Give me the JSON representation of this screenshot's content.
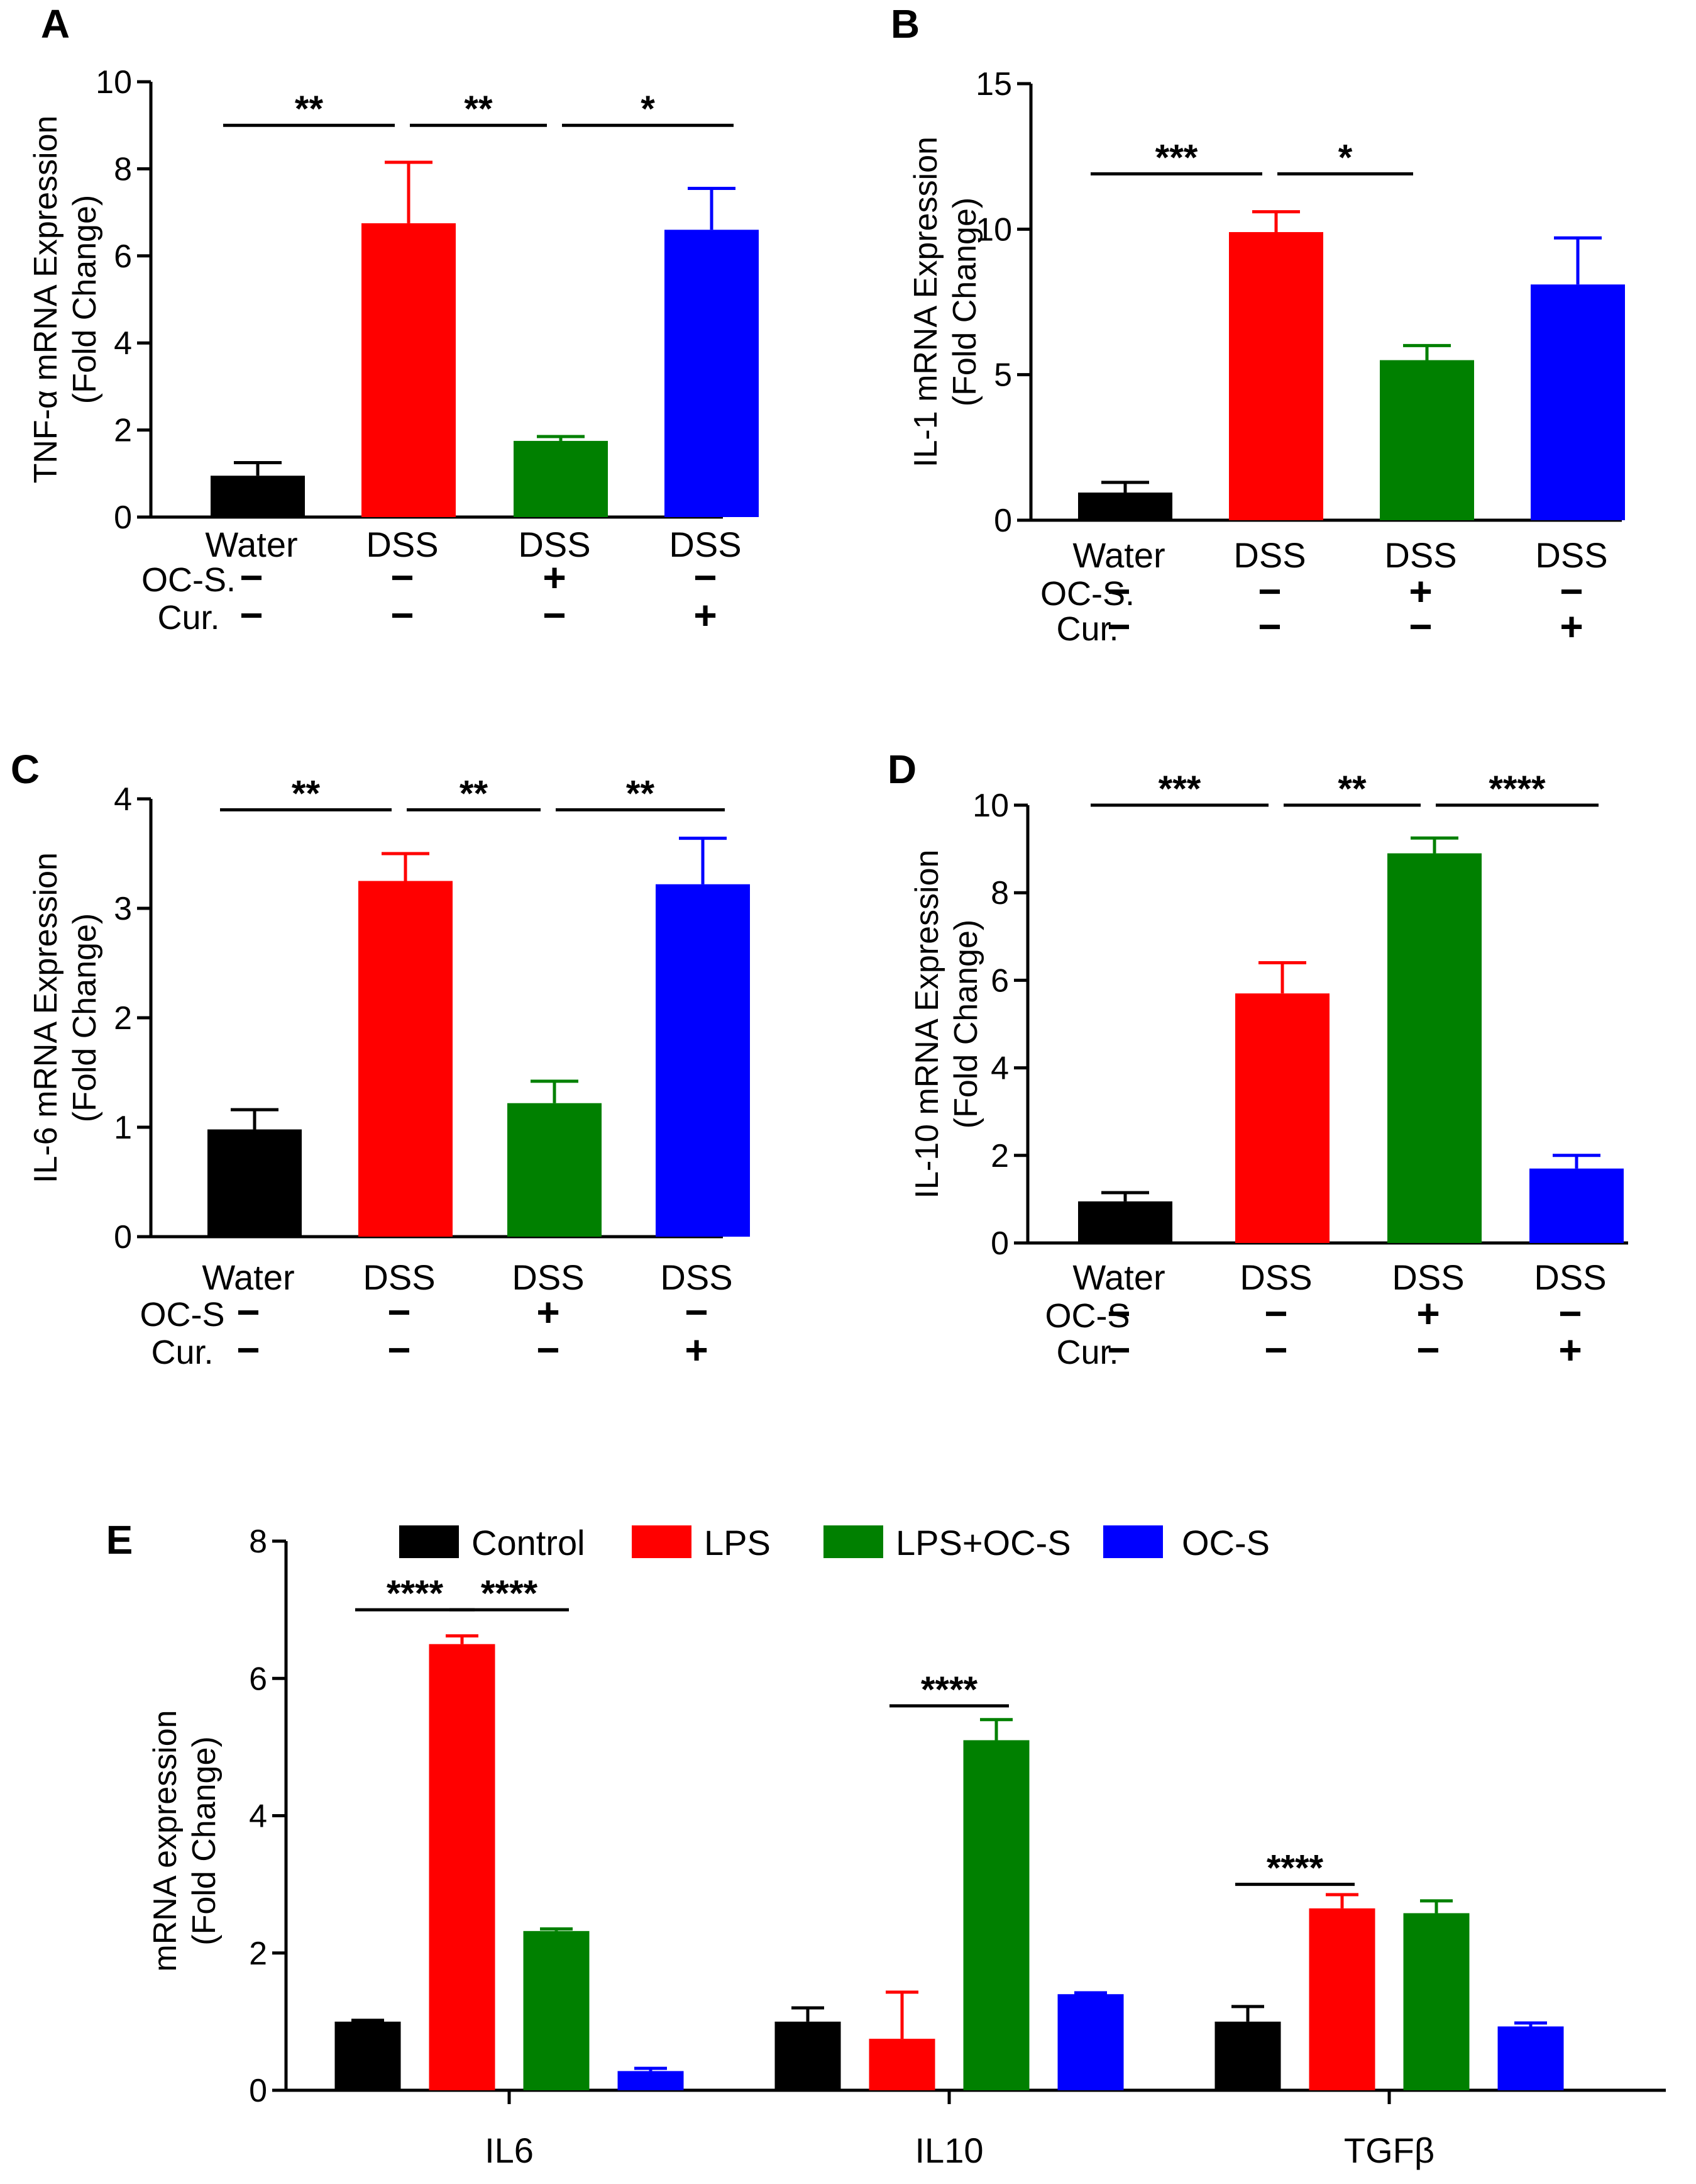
{
  "colors": {
    "black": "#000000",
    "red": "#ff0000",
    "green": "#008000",
    "blue": "#0000ff"
  },
  "chart_data": [
    {
      "panel": "A",
      "type": "bar",
      "categories": [
        "Water",
        "DSS",
        "DSS",
        "DSS"
      ],
      "values": [
        0.95,
        6.75,
        1.75,
        6.6
      ],
      "errors": [
        0.3,
        1.4,
        0.1,
        0.95
      ],
      "ylabel": "TNF-α mRNA Expression",
      "ylabel2": "(Fold Change)",
      "ylim": [
        0,
        10
      ],
      "yticks": [
        "0",
        "2",
        "4",
        "6",
        "8",
        "10"
      ],
      "condition_rows": [
        {
          "label": "OC-S.",
          "signs": [
            "−",
            "−",
            "+",
            "−"
          ]
        },
        {
          "label": "Cur.",
          "signs": [
            "−",
            "−",
            "−",
            "+"
          ]
        }
      ],
      "significance": [
        {
          "from": 0,
          "to": 1,
          "label": "**",
          "y": 9.0
        },
        {
          "from": 1,
          "to": 2,
          "label": "**",
          "y": 9.0
        },
        {
          "from": 2,
          "to": 3,
          "label": "*",
          "y": 9.0
        }
      ]
    },
    {
      "panel": "B",
      "type": "bar",
      "categories": [
        "Water",
        "DSS",
        "DSS",
        "DSS"
      ],
      "values": [
        0.95,
        9.9,
        5.5,
        8.1
      ],
      "errors": [
        0.35,
        0.7,
        0.5,
        1.6
      ],
      "ylabel": "IL-1 mRNA Expression",
      "ylabel2": "(Fold Change)",
      "ylim": [
        0,
        15
      ],
      "yticks": [
        "0",
        "5",
        "10",
        "15"
      ],
      "condition_rows": [
        {
          "label": "OC-S.",
          "signs": [
            "−",
            "−",
            "+",
            "−"
          ]
        },
        {
          "label": "Cur.",
          "signs": [
            "−",
            "−",
            "−",
            "+"
          ]
        }
      ],
      "significance": [
        {
          "from": 0,
          "to": 1,
          "label": "***",
          "y": 11.9
        },
        {
          "from": 1,
          "to": 2,
          "label": "*",
          "y": 11.9
        }
      ]
    },
    {
      "panel": "C",
      "type": "bar",
      "categories": [
        "Water",
        "DSS",
        "DSS",
        "DSS"
      ],
      "values": [
        0.98,
        3.25,
        1.22,
        3.22
      ],
      "errors": [
        0.18,
        0.25,
        0.2,
        0.42
      ],
      "ylabel": "IL-6 mRNA Expression",
      "ylabel2": "(Fold Change)",
      "ylim": [
        0,
        4
      ],
      "yticks": [
        "0",
        "1",
        "2",
        "3",
        "4"
      ],
      "condition_rows": [
        {
          "label": "OC-S",
          "signs": [
            "−",
            "−",
            "+",
            "−"
          ]
        },
        {
          "label": "Cur.",
          "signs": [
            "−",
            "−",
            "−",
            "+"
          ]
        }
      ],
      "significance": [
        {
          "from": 0,
          "to": 1,
          "label": "**",
          "y": 3.9
        },
        {
          "from": 1,
          "to": 2,
          "label": "**",
          "y": 3.9
        },
        {
          "from": 2,
          "to": 3,
          "label": "**",
          "y": 3.9
        }
      ]
    },
    {
      "panel": "D",
      "type": "bar",
      "categories": [
        "Water",
        "DSS",
        "DSS",
        "DSS"
      ],
      "values": [
        0.95,
        5.7,
        8.9,
        1.7
      ],
      "errors": [
        0.2,
        0.7,
        0.35,
        0.3
      ],
      "ylabel": "IL-10 mRNA Expression",
      "ylabel2": "(Fold Change)",
      "ylim": [
        0,
        10
      ],
      "yticks": [
        "0",
        "2",
        "4",
        "6",
        "8",
        "10"
      ],
      "condition_rows": [
        {
          "label": "OC-S",
          "signs": [
            "−",
            "−",
            "+",
            "−"
          ]
        },
        {
          "label": "Cur.",
          "signs": [
            "−",
            "−",
            "−",
            "+"
          ]
        }
      ],
      "significance": [
        {
          "from": 0,
          "to": 1,
          "label": "***",
          "y": 10.0
        },
        {
          "from": 1,
          "to": 2,
          "label": "**",
          "y": 10.0
        },
        {
          "from": 2,
          "to": 3,
          "label": "****",
          "y": 10.0
        }
      ]
    },
    {
      "panel": "E",
      "type": "bar",
      "categories": [
        "IL6",
        "IL10",
        "TGFβ"
      ],
      "series": [
        {
          "name": "Control",
          "color": "#000000",
          "values": [
            1.0,
            1.0,
            1.0
          ],
          "errors": [
            0.02,
            0.2,
            0.22
          ]
        },
        {
          "name": "LPS",
          "color": "#ff0000",
          "values": [
            6.5,
            0.75,
            2.65
          ],
          "errors": [
            0.12,
            0.68,
            0.2
          ]
        },
        {
          "name": "LPS+OC-S",
          "color": "#008000",
          "values": [
            2.32,
            5.1,
            2.58
          ],
          "errors": [
            0.03,
            0.3,
            0.18
          ]
        },
        {
          "name": "OC-S",
          "color": "#0000ff",
          "values": [
            0.28,
            1.4,
            0.93
          ],
          "errors": [
            0.04,
            0.02,
            0.05
          ]
        }
      ],
      "ylabel": "mRNA expression",
      "ylabel2": "(Fold Change)",
      "ylim": [
        0,
        8
      ],
      "yticks": [
        "0",
        "2",
        "4",
        "6",
        "8"
      ],
      "significance": [
        {
          "group": 0,
          "from": 0,
          "to": 1,
          "label": "****",
          "y": 7.0
        },
        {
          "group": 0,
          "from": 1,
          "to": 2,
          "label": "****",
          "y": 7.0
        },
        {
          "group": 1,
          "from": 1,
          "to": 2,
          "label": "****",
          "y": 5.6
        },
        {
          "group": 2,
          "from": 0,
          "to": 1,
          "label": "****",
          "y": 3.0
        }
      ]
    }
  ]
}
